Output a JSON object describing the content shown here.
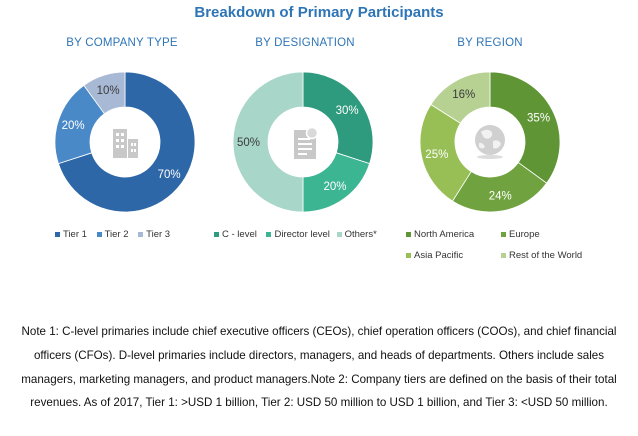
{
  "title": "Breakdown of Primary Participants",
  "colors": {
    "title": "#2e75b6",
    "chart_title": "#2e75b6",
    "tier1": "#2e67a8",
    "tier2": "#4a89c8",
    "tier3": "#a8b9d6",
    "c_level": "#2e9a7e",
    "director_level": "#3cb593",
    "others": "#a8d6c8",
    "north_america": "#5f9535",
    "europe": "#70a33f",
    "asia_pacific": "#97bf55",
    "rest_of_world": "#b7d192"
  },
  "chart_data": [
    {
      "type": "pie",
      "title": "BY COMPANY TYPE",
      "icon": "building-icon",
      "slices": [
        {
          "label": "Tier 1",
          "value": 70,
          "display": "70%",
          "color_key": "tier1"
        },
        {
          "label": "Tier 2",
          "value": 20,
          "display": "20%",
          "color_key": "tier2"
        },
        {
          "label": "Tier 3",
          "value": 10,
          "display": "10%",
          "color_key": "tier3"
        }
      ]
    },
    {
      "type": "pie",
      "title": "BY DESIGNATION",
      "icon": "document-icon",
      "slices": [
        {
          "label": "C - level",
          "value": 30,
          "display": "30%",
          "color_key": "c_level"
        },
        {
          "label": "Director level",
          "value": 20,
          "display": "20%",
          "color_key": "director_level"
        },
        {
          "label": "Others*",
          "value": 50,
          "display": "50%",
          "color_key": "others"
        }
      ]
    },
    {
      "type": "pie",
      "title": "BY REGION",
      "icon": "globe-icon",
      "slices": [
        {
          "label": "North America",
          "value": 35,
          "display": "35%",
          "color_key": "north_america"
        },
        {
          "label": "Europe",
          "value": 24,
          "display": "24%",
          "color_key": "europe"
        },
        {
          "label": "Asia Pacific",
          "value": 25,
          "display": "25%",
          "color_key": "asia_pacific"
        },
        {
          "label": "Rest of the World",
          "value": 16,
          "display": "16%",
          "color_key": "rest_of_world"
        }
      ]
    }
  ],
  "note": "Note 1: C-level primaries include chief executive officers (CEOs), chief operation officers (COOs), and chief financial officers (CFOs). D-level primaries include directors, managers, and heads of departments. Others include sales managers, marketing managers, and product managers.Note 2: Company tiers are defined on the basis of their total revenues. As of 2017, Tier 1: >USD 1 billion, Tier 2: USD 50 million to USD 1 billion, and Tier 3: <USD 50 million."
}
